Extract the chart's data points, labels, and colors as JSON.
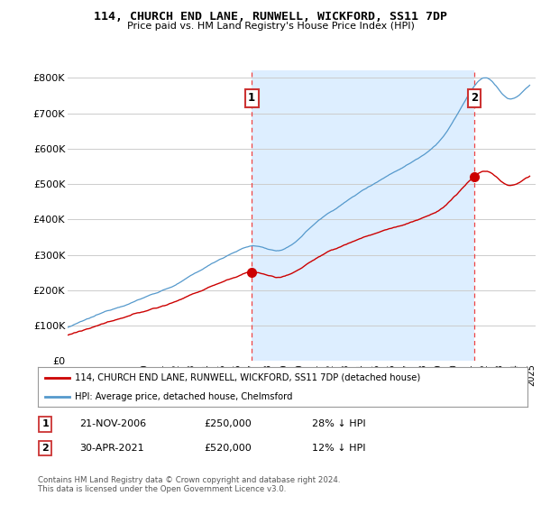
{
  "title": "114, CHURCH END LANE, RUNWELL, WICKFORD, SS11 7DP",
  "subtitle": "Price paid vs. HM Land Registry's House Price Index (HPI)",
  "red_label": "114, CHURCH END LANE, RUNWELL, WICKFORD, SS11 7DP (detached house)",
  "blue_label": "HPI: Average price, detached house, Chelmsford",
  "annotation1": {
    "num": "1",
    "date": "21-NOV-2006",
    "price": "£250,000",
    "pct": "28% ↓ HPI"
  },
  "annotation2": {
    "num": "2",
    "date": "30-APR-2021",
    "price": "£520,000",
    "pct": "12% ↓ HPI"
  },
  "footer": "Contains HM Land Registry data © Crown copyright and database right 2024.\nThis data is licensed under the Open Government Licence v3.0.",
  "y_ticks": [
    0,
    100000,
    200000,
    300000,
    400000,
    500000,
    600000,
    700000,
    800000
  ],
  "y_tick_labels": [
    "£0",
    "£100K",
    "£200K",
    "£300K",
    "£400K",
    "£500K",
    "£600K",
    "£700K",
    "£800K"
  ],
  "ylim": [
    0,
    820000
  ],
  "sale1_x": 2006.92,
  "sale1_y": 250000,
  "sale2_x": 2021.33,
  "sale2_y": 520000,
  "vline1_x": 2006.92,
  "vline2_x": 2021.33,
  "background_color": "#ffffff",
  "grid_color": "#cccccc",
  "red_color": "#cc0000",
  "blue_color": "#5599cc",
  "shade_color": "#ddeeff",
  "vline_color": "#ee4444",
  "xlim_left": 1995.0,
  "xlim_right": 2025.3
}
